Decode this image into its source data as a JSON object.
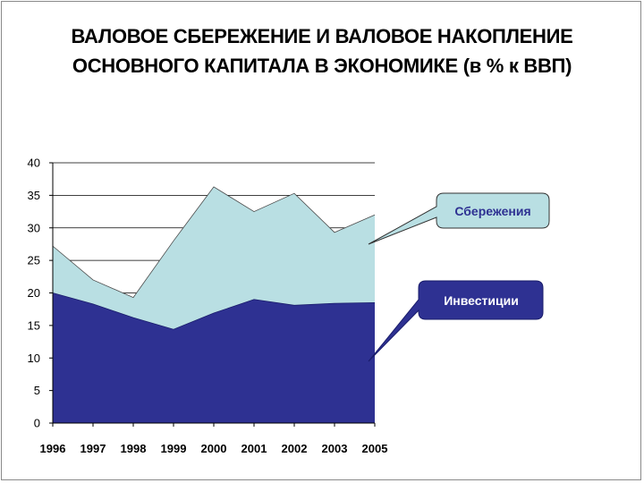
{
  "title": {
    "line1": "ВАЛОВОЕ СБЕРЕЖЕНИЕ И ВАЛОВОЕ НАКОПЛЕНИЕ",
    "line2": "ОСНОВНОГО КАПИТАЛА В ЭКОНОМИКЕ (в % к ВВП)"
  },
  "colors": {
    "savings_fill": "#b9dfe3",
    "investment_fill": "#2e3192",
    "savings_label_text": "#2e3192",
    "investment_label_text": "#ffffff",
    "grid": "#000000"
  },
  "chart_data": {
    "type": "area",
    "x": [
      "1996",
      "1997",
      "1998",
      "1999",
      "2000",
      "2001",
      "2002",
      "2003",
      "2005"
    ],
    "series": [
      {
        "name": "Сбережения",
        "values": [
          27.2,
          22.0,
          19.3,
          28.0,
          36.3,
          32.5,
          35.3,
          29.3,
          32.0
        ]
      },
      {
        "name": "Инвестиции",
        "values": [
          20.0,
          18.3,
          16.2,
          14.4,
          16.9,
          19.0,
          18.1,
          18.4,
          18.5
        ]
      }
    ],
    "ylim": [
      0,
      40
    ],
    "yticks": [
      0,
      5,
      10,
      15,
      20,
      25,
      30,
      35,
      40
    ],
    "grid": "horizontal",
    "legend": "callouts-right",
    "title": "",
    "xlabel": "",
    "ylabel": ""
  }
}
